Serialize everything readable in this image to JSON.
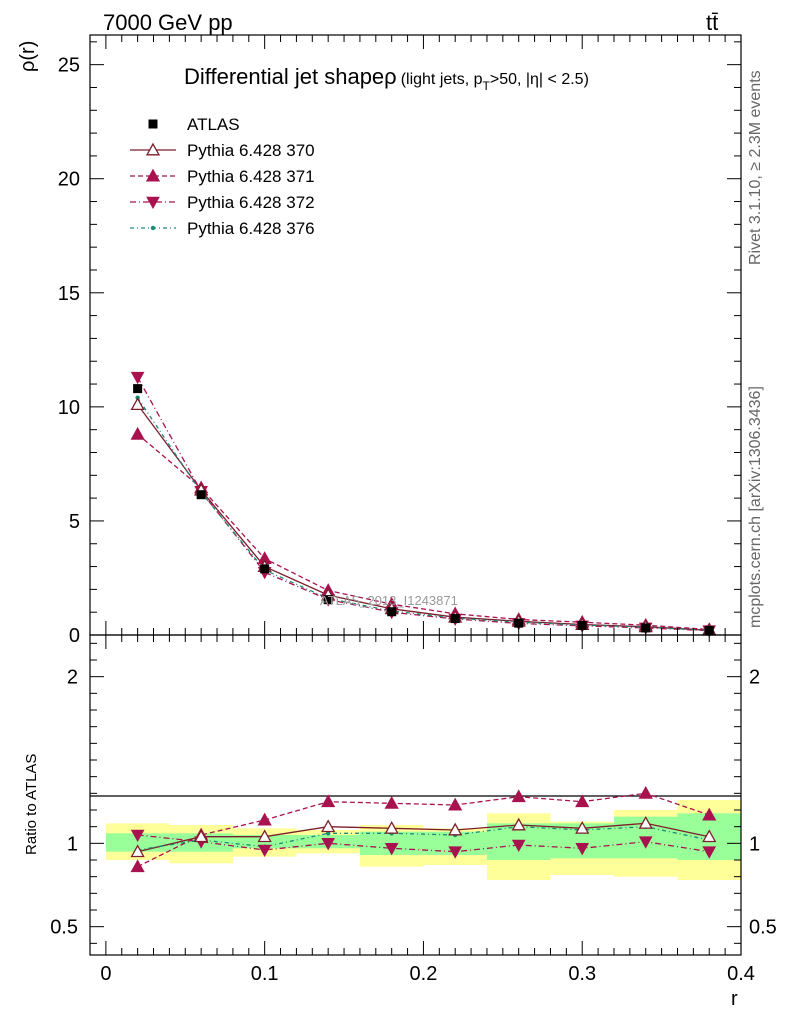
{
  "header": {
    "left": "7000 GeV pp",
    "right": "tt̄"
  },
  "side_labels": {
    "top": "Rivet 3.1.10, ≥ 2.3M events",
    "bottom": "mcplots.cern.ch [arXiv:1306.3436]"
  },
  "watermark": "ATLAS_2013_I1243871",
  "chart_data": [
    {
      "panel": "main",
      "type": "line",
      "title": "Differential jet shape",
      "title_symbol": "ρ",
      "title_cond_a": "(light jets, p",
      "title_cond_sub": "T",
      "title_cond_b": ">50, |η| < 2.5)",
      "ylabel": "ρ(r)",
      "xlim": [
        -0.01,
        0.4
      ],
      "ylim": [
        0,
        26.3
      ],
      "yticks": [
        0,
        5,
        10,
        15,
        20,
        25
      ],
      "x": [
        0.02,
        0.06,
        0.1,
        0.14,
        0.18,
        0.22,
        0.26,
        0.3,
        0.34,
        0.38
      ],
      "legend_placement": "top-left",
      "series": [
        {
          "name": "ATLAS",
          "marker": "square",
          "color": "#000000",
          "values": [
            10.8,
            6.15,
            2.9,
            1.55,
            1.02,
            0.72,
            0.52,
            0.42,
            0.31,
            0.2
          ]
        },
        {
          "name": "Pythia 6.428 370",
          "marker": "tri-up-open",
          "dash": "",
          "color": "#7b1f2a",
          "values": [
            10.1,
            6.35,
            3.0,
            1.75,
            1.15,
            0.78,
            0.6,
            0.46,
            0.36,
            0.21
          ]
        },
        {
          "name": "Pythia 6.428 371",
          "marker": "tri-up",
          "dash": "5,3",
          "color": "#a8124f",
          "values": [
            8.8,
            6.45,
            3.35,
            1.95,
            1.35,
            0.93,
            0.68,
            0.56,
            0.43,
            0.24
          ]
        },
        {
          "name": "Pythia 6.428 372",
          "marker": "tri-down",
          "dash": "6,3,1,3",
          "color": "#a8124f",
          "values": [
            11.3,
            6.3,
            2.75,
            1.55,
            1.0,
            0.7,
            0.51,
            0.4,
            0.31,
            0.19
          ]
        },
        {
          "name": "Pythia 6.428 376",
          "marker": "dot",
          "dash": "4,3,1,3",
          "color": "#1a8a7a",
          "values": [
            10.4,
            6.25,
            2.85,
            1.6,
            1.05,
            0.74,
            0.56,
            0.44,
            0.34,
            0.2
          ]
        }
      ]
    },
    {
      "panel": "ratio",
      "type": "line",
      "xlabel": "r",
      "ylabel": "Ratio to ATLAS",
      "xlim": [
        -0.01,
        0.4
      ],
      "ylim": [
        0.33,
        2.25
      ],
      "yticks": [
        0.5,
        1,
        2
      ],
      "xticks": [
        0,
        0.1,
        0.2,
        0.3,
        0.4
      ],
      "xtick_labels": [
        "0",
        "0.1",
        "0.2",
        "0.3",
        "0.4"
      ],
      "bands": {
        "bin_edges": [
          0.0,
          0.04,
          0.08,
          0.12,
          0.16,
          0.2,
          0.24,
          0.28,
          0.32,
          0.36,
          0.4
        ],
        "green_low": [
          0.95,
          0.95,
          0.97,
          0.97,
          0.93,
          0.93,
          0.9,
          0.91,
          0.91,
          0.9
        ],
        "green_high": [
          1.06,
          1.06,
          1.05,
          1.05,
          1.07,
          1.07,
          1.12,
          1.12,
          1.16,
          1.18
        ],
        "yellow_low": [
          0.9,
          0.88,
          0.92,
          0.94,
          0.86,
          0.87,
          0.78,
          0.81,
          0.8,
          0.78
        ],
        "yellow_high": [
          1.12,
          1.11,
          1.09,
          1.08,
          1.11,
          1.09,
          1.18,
          1.13,
          1.2,
          1.26
        ],
        "green_color": "#99ff99",
        "yellow_color": "#ffff99"
      },
      "x": [
        0.02,
        0.06,
        0.1,
        0.14,
        0.18,
        0.22,
        0.26,
        0.3,
        0.34,
        0.38
      ],
      "series": [
        {
          "name": "Pythia 6.428 370",
          "marker": "tri-up-open",
          "dash": "",
          "color": "#7b1f2a",
          "values": [
            0.95,
            1.04,
            1.04,
            1.1,
            1.09,
            1.08,
            1.11,
            1.09,
            1.12,
            1.04
          ]
        },
        {
          "name": "Pythia 6.428 371",
          "marker": "tri-up",
          "dash": "5,3",
          "color": "#a8124f",
          "values": [
            0.86,
            1.05,
            1.14,
            1.25,
            1.24,
            1.23,
            1.28,
            1.25,
            1.3,
            1.17
          ]
        },
        {
          "name": "Pythia 6.428 372",
          "marker": "tri-down",
          "dash": "6,3,1,3",
          "color": "#a8124f",
          "values": [
            1.05,
            1.01,
            0.96,
            1.0,
            0.97,
            0.95,
            0.99,
            0.97,
            1.01,
            0.95
          ]
        },
        {
          "name": "Pythia 6.428 376",
          "marker": "dot",
          "dash": "4,3,1,3",
          "color": "#1a8a7a",
          "values": [
            0.96,
            1.02,
            0.98,
            1.06,
            1.06,
            1.05,
            1.1,
            1.08,
            1.1,
            1.02
          ]
        }
      ]
    }
  ]
}
